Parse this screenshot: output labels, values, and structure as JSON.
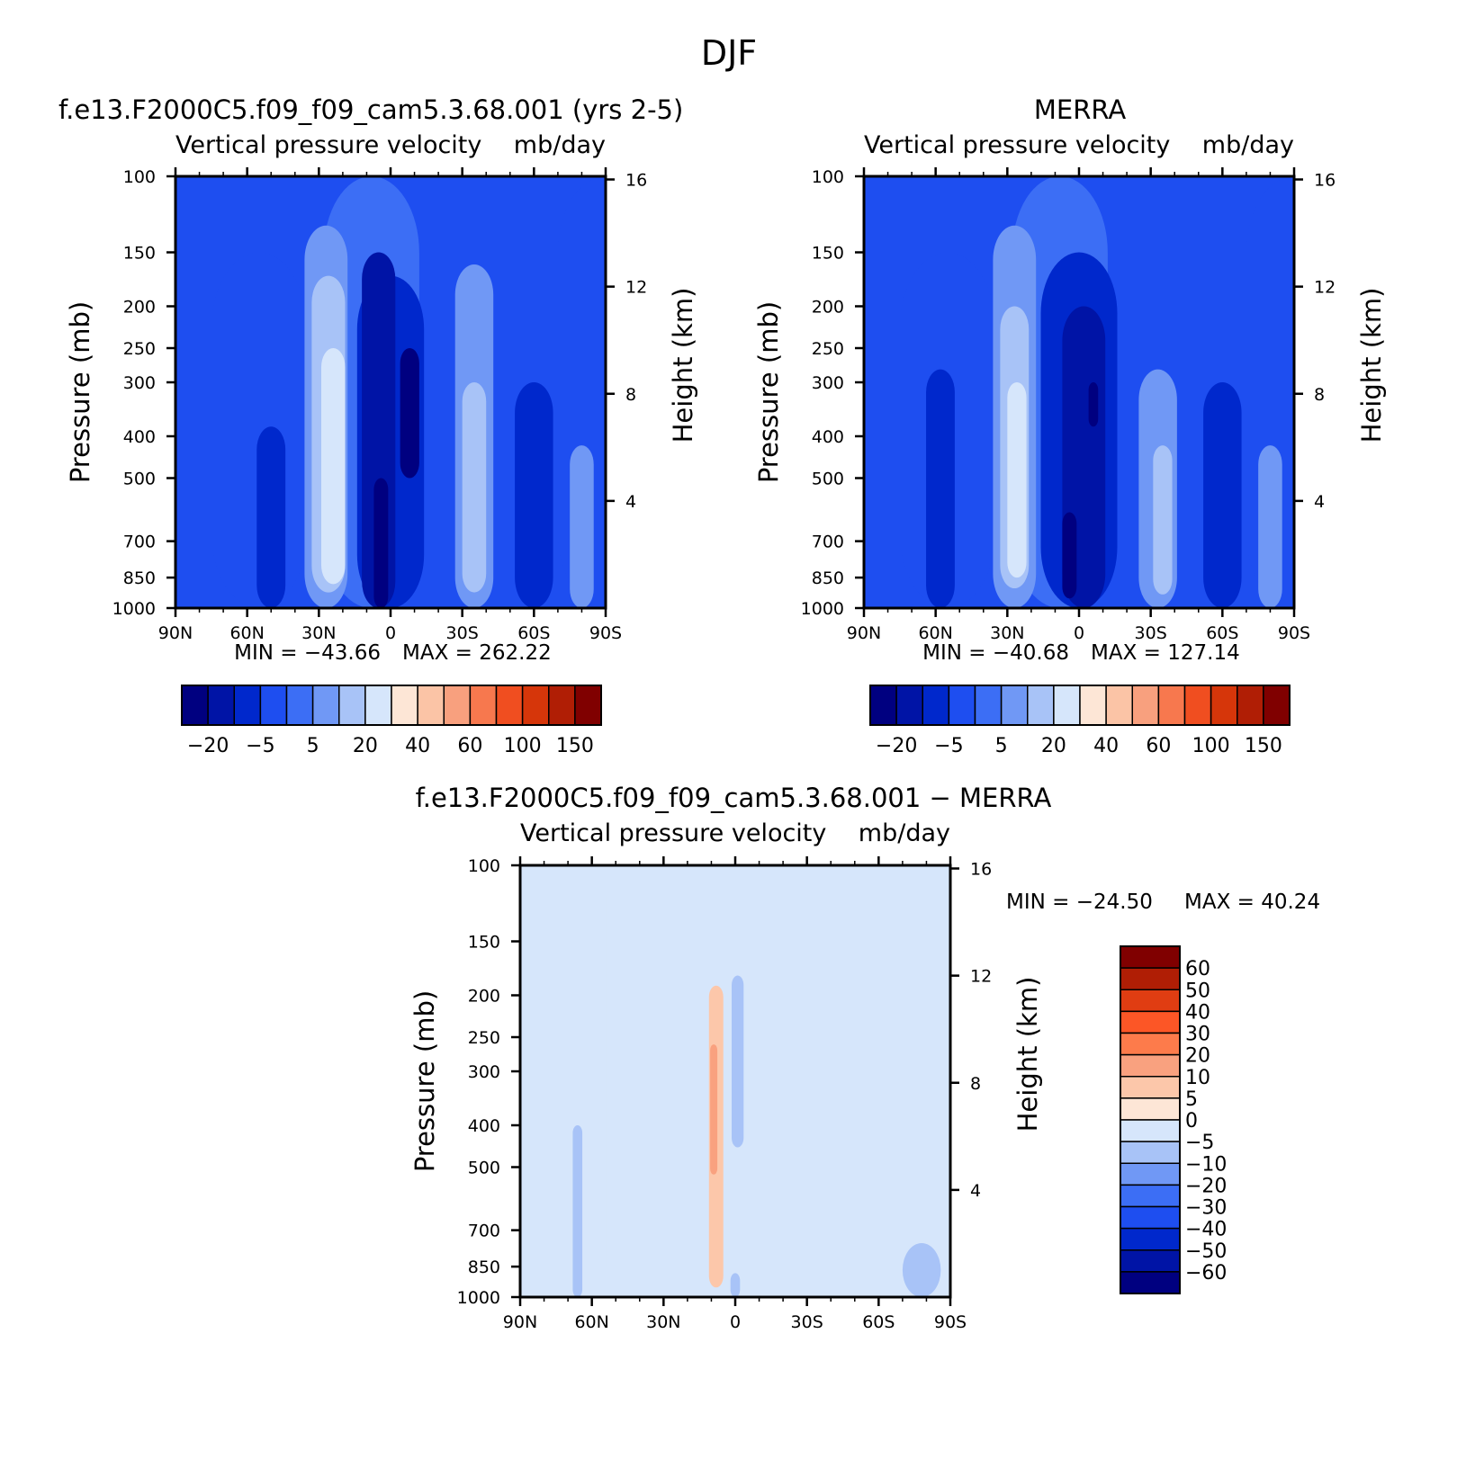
{
  "figure_title": "DJF",
  "chart_data": [
    {
      "type": "heatmap",
      "title": "f.e13.F2000C5.f09_f09_cam5.3.68.001 (yrs 2-5)",
      "subtitle_left": "Vertical pressure velocity",
      "subtitle_right": "mb/day",
      "ylabel": "Pressure (mb)",
      "y2label": "Height (km)",
      "x_ticks": [
        "90N",
        "60N",
        "30N",
        "0",
        "30S",
        "60S",
        "90S"
      ],
      "y_ticks": [
        "100",
        "150",
        "200",
        "250",
        "300",
        "400",
        "500",
        "700",
        "850",
        "1000"
      ],
      "y2_ticks": [
        "16",
        "12",
        "8",
        "4"
      ],
      "min_text": "MIN = −43.66",
      "max_text": "MAX = 262.22",
      "colorbar_labels": [
        "−20",
        "−5",
        "5",
        "20",
        "40",
        "60",
        "100",
        "150"
      ],
      "features": [
        {
          "lat": -90,
          "half_width": 20,
          "p_top": 100,
          "p_bot": 1000,
          "level": 3
        },
        {
          "lat": 8,
          "half_width": 20,
          "p_top": 100,
          "p_bot": 1000,
          "level": 4
        },
        {
          "lat": 55,
          "half_width": 20,
          "p_top": 150,
          "p_bot": 1000,
          "level": 3
        },
        {
          "lat": 27,
          "half_width": 9,
          "p_top": 130,
          "p_bot": 1000,
          "level": 5
        },
        {
          "lat": 26,
          "half_width": 7,
          "p_top": 170,
          "p_bot": 920,
          "level": 6
        },
        {
          "lat": 24,
          "half_width": 5,
          "p_top": 250,
          "p_bot": 880,
          "level": 7
        },
        {
          "lat": 0,
          "half_width": 14,
          "p_top": 170,
          "p_bot": 1000,
          "level": 2
        },
        {
          "lat": 5,
          "half_width": 7,
          "p_top": 150,
          "p_bot": 1000,
          "level": 1
        },
        {
          "lat": -8,
          "half_width": 4,
          "p_top": 250,
          "p_bot": 500,
          "level": 0
        },
        {
          "lat": 4,
          "half_width": 3,
          "p_top": 500,
          "p_bot": 1000,
          "level": 0
        },
        {
          "lat": -35,
          "half_width": 8,
          "p_top": 160,
          "p_bot": 1000,
          "level": 5
        },
        {
          "lat": -35,
          "half_width": 5,
          "p_top": 300,
          "p_bot": 920,
          "level": 6
        },
        {
          "lat": -60,
          "half_width": 8,
          "p_top": 300,
          "p_bot": 1000,
          "level": 2
        },
        {
          "lat": 50,
          "half_width": 6,
          "p_top": 380,
          "p_bot": 1000,
          "level": 2
        },
        {
          "lat": -80,
          "half_width": 5,
          "p_top": 420,
          "p_bot": 1000,
          "level": 5
        }
      ]
    },
    {
      "type": "heatmap",
      "title": "MERRA",
      "subtitle_left": "Vertical pressure velocity",
      "subtitle_right": "mb/day",
      "ylabel": "Pressure (mb)",
      "y2label": "Height (km)",
      "x_ticks": [
        "90N",
        "60N",
        "30N",
        "0",
        "30S",
        "60S",
        "90S"
      ],
      "y_ticks": [
        "100",
        "150",
        "200",
        "250",
        "300",
        "400",
        "500",
        "700",
        "850",
        "1000"
      ],
      "y2_ticks": [
        "16",
        "12",
        "8",
        "4"
      ],
      "min_text": "MIN = −40.68",
      "max_text": "MAX = 127.14",
      "colorbar_labels": [
        "−20",
        "−5",
        "5",
        "20",
        "40",
        "60",
        "100",
        "150"
      ],
      "features": [
        {
          "lat": -90,
          "half_width": 20,
          "p_top": 100,
          "p_bot": 1000,
          "level": 3
        },
        {
          "lat": 8,
          "half_width": 20,
          "p_top": 100,
          "p_bot": 1000,
          "level": 4
        },
        {
          "lat": 55,
          "half_width": 20,
          "p_top": 150,
          "p_bot": 1000,
          "level": 3
        },
        {
          "lat": 27,
          "half_width": 9,
          "p_top": 130,
          "p_bot": 1000,
          "level": 5
        },
        {
          "lat": 27,
          "half_width": 6,
          "p_top": 200,
          "p_bot": 900,
          "level": 6
        },
        {
          "lat": 26,
          "half_width": 4,
          "p_top": 300,
          "p_bot": 850,
          "level": 7
        },
        {
          "lat": 0,
          "half_width": 16,
          "p_top": 150,
          "p_bot": 1000,
          "level": 2
        },
        {
          "lat": -2,
          "half_width": 9,
          "p_top": 200,
          "p_bot": 1000,
          "level": 1
        },
        {
          "lat": -6,
          "half_width": 2,
          "p_top": 300,
          "p_bot": 380,
          "level": 0
        },
        {
          "lat": 4,
          "half_width": 3,
          "p_top": 600,
          "p_bot": 950,
          "level": 0
        },
        {
          "lat": -33,
          "half_width": 8,
          "p_top": 280,
          "p_bot": 1000,
          "level": 5
        },
        {
          "lat": -35,
          "half_width": 4,
          "p_top": 420,
          "p_bot": 930,
          "level": 6
        },
        {
          "lat": 58,
          "half_width": 6,
          "p_top": 280,
          "p_bot": 1000,
          "level": 2
        },
        {
          "lat": -60,
          "half_width": 8,
          "p_top": 300,
          "p_bot": 1000,
          "level": 2
        },
        {
          "lat": -80,
          "half_width": 5,
          "p_top": 420,
          "p_bot": 1000,
          "level": 5
        }
      ]
    },
    {
      "type": "heatmap",
      "title": "f.e13.F2000C5.f09_f09_cam5.3.68.001 − MERRA",
      "subtitle_left": "Vertical pressure velocity",
      "subtitle_right": "mb/day",
      "ylabel": "Pressure (mb)",
      "y2label": "Height (km)",
      "x_ticks": [
        "90N",
        "60N",
        "30N",
        "0",
        "30S",
        "60S",
        "90S"
      ],
      "y_ticks": [
        "100",
        "150",
        "200",
        "250",
        "300",
        "400",
        "500",
        "700",
        "850",
        "1000"
      ],
      "y2_ticks": [
        "16",
        "12",
        "8",
        "4"
      ],
      "min_text": "MIN = −24.50",
      "max_text": "MAX =   40.24",
      "colorbar_labels": [
        "60",
        "50",
        "40",
        "30",
        "20",
        "10",
        "5",
        "0",
        "−5",
        "−10",
        "−20",
        "−30",
        "−40",
        "−50",
        "−60"
      ],
      "features": [
        {
          "lat": 62,
          "half_width": 8,
          "p_top": 100,
          "p_bot": 1000,
          "level": 8
        },
        {
          "lat": 25,
          "half_width": 6,
          "p_top": 100,
          "p_bot": 1000,
          "level": 8
        },
        {
          "lat": -3,
          "half_width": 7,
          "p_top": 100,
          "p_bot": 1000,
          "level": 8
        },
        {
          "lat": -38,
          "half_width": 12,
          "p_top": 100,
          "p_bot": 1000,
          "level": 8
        },
        {
          "lat": 8,
          "half_width": 3,
          "p_top": 190,
          "p_bot": 950,
          "level": 6
        },
        {
          "lat": 9,
          "half_width": 1.5,
          "p_top": 260,
          "p_bot": 520,
          "level": 5
        },
        {
          "lat": -1,
          "half_width": 2.5,
          "p_top": 180,
          "p_bot": 450,
          "level": 9
        },
        {
          "lat": 0,
          "half_width": 2,
          "p_top": 880,
          "p_bot": 1000,
          "level": 9
        },
        {
          "lat": 66,
          "half_width": 2,
          "p_top": 400,
          "p_bot": 1000,
          "level": 9
        },
        {
          "lat": -78,
          "half_width": 8,
          "p_top": 750,
          "p_bot": 1000,
          "level": 9
        }
      ]
    }
  ],
  "colors": {
    "abs_scale": [
      "#000080",
      "#0014a6",
      "#0028cc",
      "#1e4ef0",
      "#3c6ef5",
      "#7098f5",
      "#a8c3f7",
      "#d6e6fb",
      "#fde6d6",
      "#fbc4a6",
      "#f8a07e",
      "#f7784e",
      "#f04e20",
      "#d6360a",
      "#b01e05",
      "#800000"
    ],
    "diff_scale": [
      "#800000",
      "#b01e05",
      "#e03d12",
      "#fc5626",
      "#fd7b4b",
      "#f9a17f",
      "#fcc7aa",
      "#fde6d6",
      "#d6e6fb",
      "#a8c3f7",
      "#7098f5",
      "#3c6ef5",
      "#1e4ef0",
      "#0028cc",
      "#0014a6",
      "#000080"
    ],
    "diff_background": "#d6e6fb"
  }
}
